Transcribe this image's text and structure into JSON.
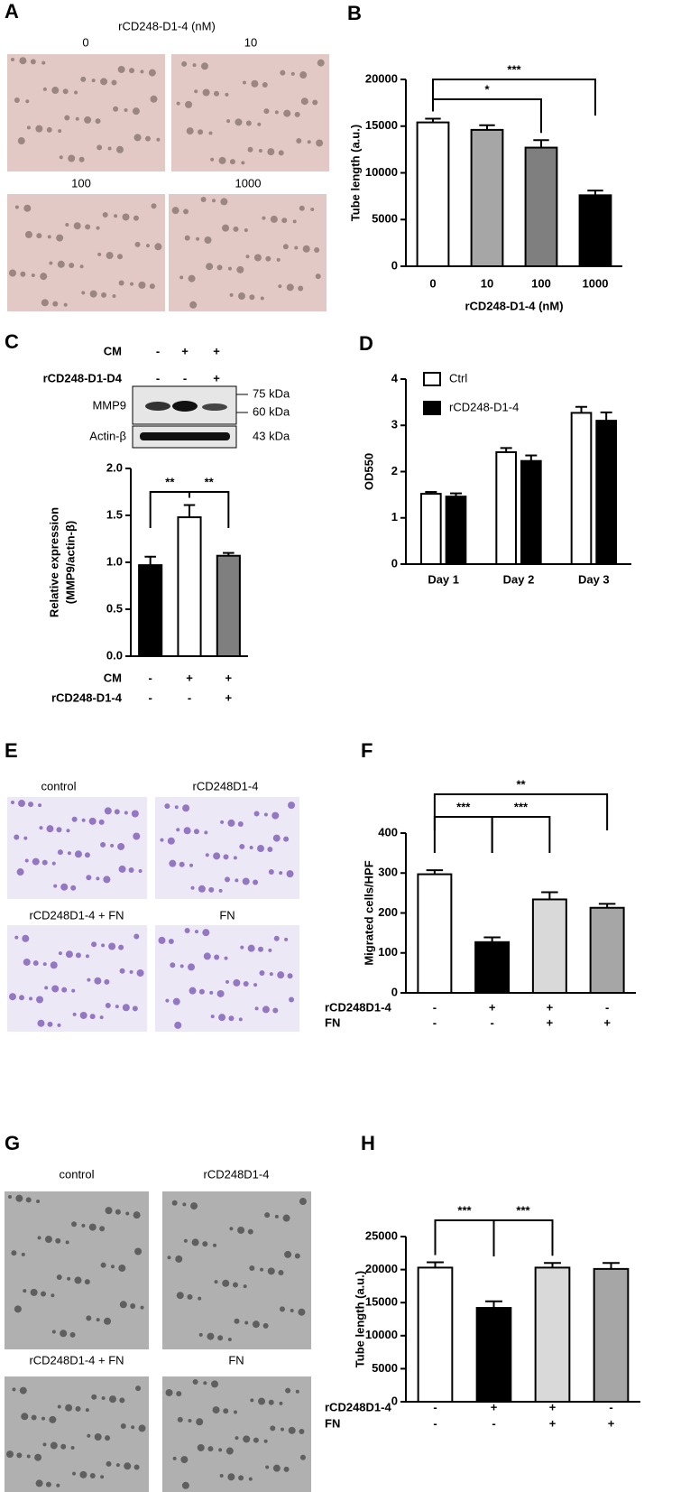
{
  "panel_labels": [
    "A",
    "B",
    "C",
    "D",
    "E",
    "F",
    "G",
    "H"
  ],
  "panel_a": {
    "title": "rCD248-D1-4 (nM)",
    "images": [
      "0",
      "10",
      "100",
      "1000"
    ]
  },
  "panel_c_blot": {
    "conditions": [
      {
        "label": "CM",
        "marks": [
          "-",
          "+",
          "+"
        ]
      },
      {
        "label": "rCD248-D1-D4",
        "marks": [
          "-",
          "-",
          "+"
        ]
      }
    ],
    "bands": [
      "MMP9",
      "Actin-β"
    ],
    "sizes": [
      "75 kDa",
      "60 kDa",
      "43 kDa"
    ]
  },
  "panel_e": {
    "images": [
      "control",
      "rCD248D1-4",
      "rCD248D1-4 + FN",
      "FN"
    ]
  },
  "panel_g": {
    "images": [
      "control",
      "rCD248D1-4",
      "rCD248D1-4 + FN",
      "FN"
    ]
  },
  "chart_data": [
    {
      "type": "bar",
      "categories": [
        "0",
        "10",
        "100",
        "1000"
      ],
      "values": [
        15400,
        14600,
        12700,
        7600
      ],
      "errors": [
        400,
        500,
        800,
        500
      ],
      "colors": [
        "#ffffff",
        "#a6a6a6",
        "#7f7f7f",
        "#000000"
      ],
      "ylim": [
        0,
        20000
      ],
      "yticks": [
        0,
        5000,
        10000,
        15000,
        20000
      ],
      "ylabel": [
        "Tube length (a.u.)"
      ],
      "xlabel": "rCD248-D1-4 (nM)",
      "brackets": [
        {
          "from": 0,
          "to": 2,
          "label": "*"
        },
        {
          "from": 0,
          "to": 3,
          "label": "***"
        }
      ]
    },
    {
      "type": "bar",
      "values": [
        0.97,
        1.48,
        1.07
      ],
      "errors": [
        0.09,
        0.13,
        0.03
      ],
      "colors": [
        "#000000",
        "#ffffff",
        "#7f7f7f"
      ],
      "ylim": [
        0,
        2
      ],
      "yticks": [
        {
          "value": 0,
          "label": "0.0"
        },
        0.5,
        {
          "value": 1,
          "label": "1.0"
        },
        1.5,
        {
          "value": 2,
          "label": "2.0"
        }
      ],
      "ylabel": [
        "Relative expression",
        "(MMP9/actin-β)"
      ],
      "brackets": [
        {
          "from": 0,
          "to": 1,
          "label": "**"
        },
        {
          "from": 1,
          "to": 2,
          "label": "**"
        }
      ],
      "conditions": [
        {
          "label": "CM",
          "marks": [
            "-",
            "+",
            "+"
          ]
        },
        {
          "label": "rCD248-D1-4",
          "marks": [
            "-",
            "-",
            "+"
          ]
        }
      ]
    },
    {
      "type": "grouped-bar",
      "categories": [
        "Day 1",
        "Day 2",
        "Day 3"
      ],
      "series": [
        {
          "name": "Ctrl",
          "color": "#ffffff",
          "values": [
            1.52,
            2.42,
            3.27
          ],
          "errors": [
            0.04,
            0.09,
            0.13
          ]
        },
        {
          "name": "rCD248-D1-4",
          "color": "#000000",
          "values": [
            1.46,
            2.23,
            3.1
          ],
          "errors": [
            0.07,
            0.12,
            0.18
          ]
        }
      ],
      "ylim": [
        0,
        4
      ],
      "yticks": [
        0,
        1,
        2,
        3,
        4
      ],
      "ylabel": [
        "OD550"
      ],
      "legend": "top-left"
    },
    {
      "type": "bar",
      "values": [
        297,
        127,
        234,
        213
      ],
      "errors": [
        10,
        12,
        18,
        10
      ],
      "colors": [
        "#ffffff",
        "#000000",
        "#d9d9d9",
        "#a6a6a6"
      ],
      "ylim": [
        0,
        400
      ],
      "yticks": [
        0,
        100,
        200,
        300,
        400
      ],
      "ylabel": [
        "Migrated cells/HPF"
      ],
      "brackets": [
        {
          "from": 0,
          "to": 1,
          "label": "***"
        },
        {
          "from": 1,
          "to": 2,
          "label": "***"
        },
        {
          "from": 0,
          "to": 3,
          "label": "**"
        }
      ],
      "conditions": [
        {
          "label": "rCD248D1-4",
          "marks": [
            "-",
            "+",
            "+",
            "-"
          ]
        },
        {
          "label": "FN",
          "marks": [
            "-",
            "-",
            "+",
            "+"
          ]
        }
      ]
    },
    {
      "type": "bar",
      "values": [
        20300,
        14200,
        20300,
        20100
      ],
      "errors": [
        800,
        1000,
        700,
        900
      ],
      "colors": [
        "#ffffff",
        "#000000",
        "#d9d9d9",
        "#a6a6a6"
      ],
      "ylim": [
        0,
        25000
      ],
      "yticks": [
        0,
        5000,
        10000,
        15000,
        20000,
        25000
      ],
      "ylabel": [
        "Tube length (a.u.)"
      ],
      "brackets": [
        {
          "from": 0,
          "to": 1,
          "label": "***"
        },
        {
          "from": 1,
          "to": 2,
          "label": "***"
        }
      ],
      "conditions": [
        {
          "label": "rCD248D1-4",
          "marks": [
            "-",
            "+",
            "+",
            "-"
          ]
        },
        {
          "label": "FN",
          "marks": [
            "-",
            "-",
            "+",
            "+"
          ]
        }
      ]
    }
  ]
}
